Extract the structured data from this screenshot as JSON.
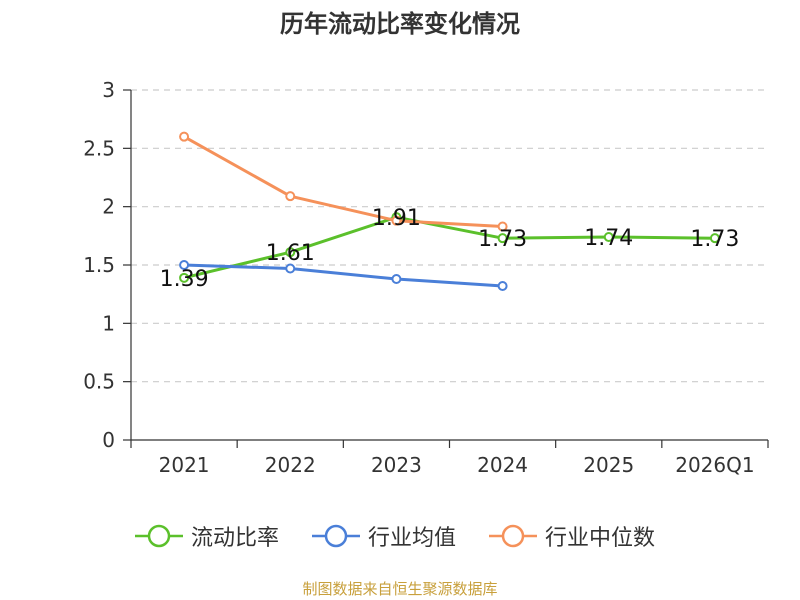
{
  "chart_data": {
    "type": "line",
    "title": "历年流动比率变化情况",
    "categories": [
      "2021",
      "2022",
      "2023",
      "2024",
      "2025",
      "2026Q1"
    ],
    "y_ticks": [
      "0",
      "0.5",
      "1",
      "1.5",
      "2",
      "2.5",
      "3"
    ],
    "ylim": [
      0,
      3
    ],
    "grid": true,
    "legend_position": "bottom",
    "series": [
      {
        "name": "流动比率",
        "color": "#5bc02b",
        "values": [
          1.39,
          1.61,
          1.91,
          1.73,
          1.74,
          1.73
        ],
        "labels": [
          "1.39",
          "1.61",
          "1.91",
          "1.73",
          "1.74",
          "1.73"
        ]
      },
      {
        "name": "行业均值",
        "color": "#4a7fd8",
        "values": [
          1.5,
          1.47,
          1.38,
          1.32,
          null,
          null
        ]
      },
      {
        "name": "行业中位数",
        "color": "#f5915a",
        "values": [
          2.6,
          2.09,
          1.88,
          1.83,
          null,
          null
        ]
      }
    ]
  },
  "source": "制图数据来自恒生聚源数据库"
}
